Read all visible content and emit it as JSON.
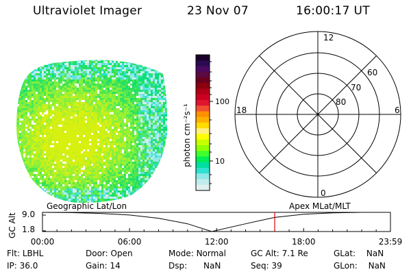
{
  "header": {
    "title": "Ultraviolet Imager",
    "date": "23 Nov 07",
    "time": "16:00:17 UT"
  },
  "colorbar": {
    "label": "photon cm⁻²s⁻¹",
    "ticks": [
      "100",
      "10"
    ],
    "colors": [
      "#1a0028",
      "#2a0a50",
      "#4a0a60",
      "#5a0a40",
      "#6a0020",
      "#8c0010",
      "#b00018",
      "#cc0022",
      "#e01530",
      "#f05030",
      "#ff9000",
      "#ffb000",
      "#ffdd00",
      "#fff080",
      "#ffff00",
      "#c8ff00",
      "#90ff00",
      "#40ff30",
      "#00ee55",
      "#00e0a0",
      "#30e0d0",
      "#90e8e8",
      "#c0ecec",
      "#e0f0f0"
    ]
  },
  "polar": {
    "mlt_labels": {
      "top": "12",
      "bottom": "0",
      "left": "18",
      "right": "6"
    },
    "lat_labels": [
      "60",
      "70",
      "80"
    ]
  },
  "timeline": {
    "ylabel": "GC Alt",
    "yticks": [
      "9.0",
      "1.8"
    ],
    "left_label": "Geographic Lat/Lon",
    "right_label": "Apex  MLat/MLT",
    "xticks": [
      "00:00",
      "06:00",
      "12:00",
      "18:00",
      "23:59"
    ],
    "marker_time": "16:00:17",
    "marker_color": "#dd0000"
  },
  "info": {
    "col1": [
      {
        "label": "Flt:",
        "value": "LBHL"
      },
      {
        "label": "IP:",
        "value": "36.0"
      }
    ],
    "col2": [
      {
        "label": "Door:",
        "value": "Open"
      },
      {
        "label": "Gain:",
        "value": "14"
      }
    ],
    "col3": [
      {
        "label": "Mode:",
        "value": "Normal"
      },
      {
        "label": "Dsp:",
        "value": "NaN"
      }
    ],
    "col4": [
      {
        "label": "GC Alt:",
        "value": "7.1 Re"
      },
      {
        "label": "Seq:",
        "value": "39"
      }
    ],
    "col5": [
      {
        "label": "GLat:",
        "value": "NaN"
      },
      {
        "label": "GLon:",
        "value": "NaN"
      }
    ]
  },
  "chart_data": {
    "type": "line",
    "title": "",
    "xlabel": "",
    "ylabel": "GC Alt",
    "x": [
      "00:00",
      "02:00",
      "04:00",
      "06:00",
      "08:00",
      "10:00",
      "11:40",
      "14:00",
      "16:00",
      "18:00",
      "20:00",
      "22:00",
      "23:59"
    ],
    "series": [
      {
        "values": [
          9.0,
          8.9,
          8.6,
          8.0,
          6.8,
          4.7,
          1.8,
          4.7,
          7.1,
          8.3,
          8.8,
          9.0,
          9.0
        ]
      }
    ],
    "ylim": [
      1.8,
      9.0
    ],
    "marker_x": "16:00:17"
  }
}
